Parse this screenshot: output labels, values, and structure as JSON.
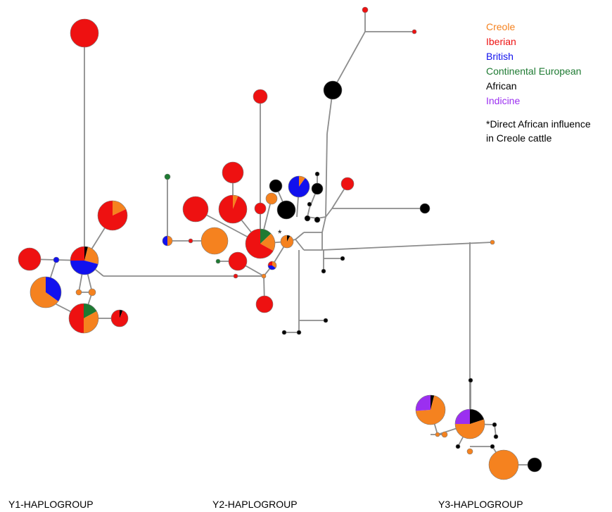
{
  "legend": {
    "items": [
      {
        "label": "Creole",
        "color": "#F5821F"
      },
      {
        "label": "Iberian",
        "color": "#EE1111"
      },
      {
        "label": "British",
        "color": "#1111EE"
      },
      {
        "label": "Continental European",
        "color": "#1E7A32"
      },
      {
        "label": "African",
        "color": "#000000"
      },
      {
        "label": "Indicine",
        "color": "#9B2FF0"
      }
    ],
    "note_line1": "*Direct African influence",
    "note_line2": "in Creole cattle"
  },
  "annotation": {
    "star_marker": "*"
  },
  "haplogroups": {
    "y1": "Y1-HAPLOGROUP",
    "y2": "Y2-HAPLOGROUP",
    "y3": "Y3-HAPLOGROUP"
  },
  "colors": {
    "edge": "#8C8C8C",
    "creole": "#F5821F",
    "iberian": "#EE1111",
    "british": "#1111EE",
    "continental": "#1E7A32",
    "african": "#000000",
    "indicine": "#9B2FF0"
  }
}
